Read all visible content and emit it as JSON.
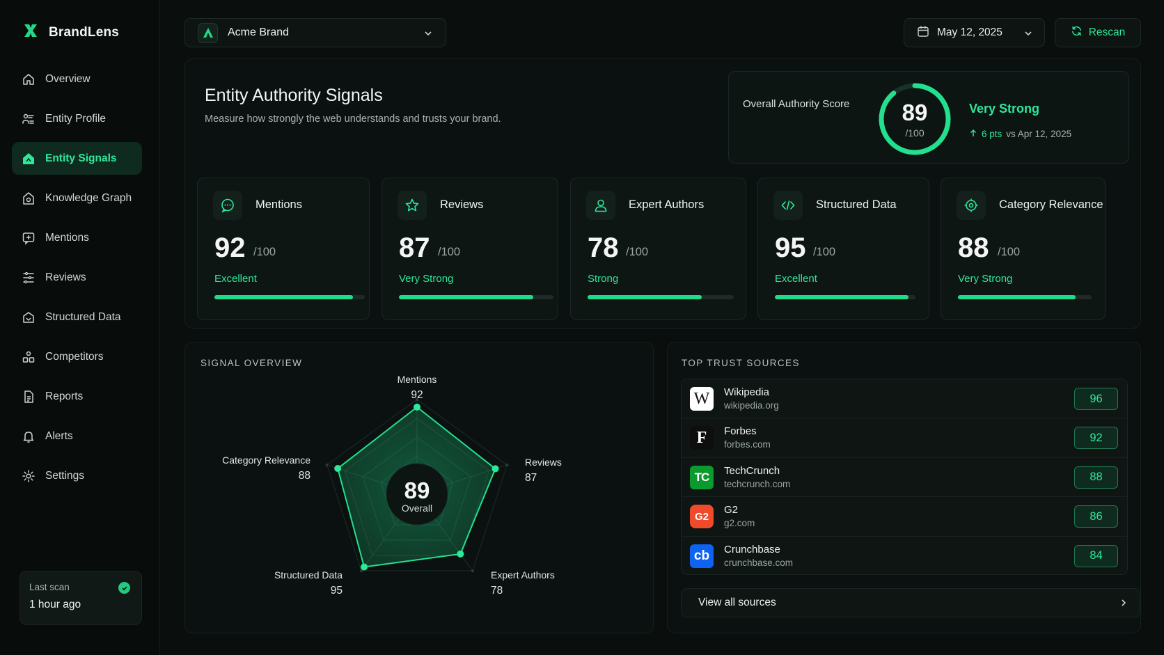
{
  "app": {
    "name": "BrandLens"
  },
  "sidebar": {
    "items": [
      {
        "label": "Overview",
        "icon": "home-icon"
      },
      {
        "label": "Entity Profile",
        "icon": "profile-icon"
      },
      {
        "label": "Entity Signals",
        "icon": "signal-icon",
        "active": true
      },
      {
        "label": "Knowledge Graph",
        "icon": "graph-icon"
      },
      {
        "label": "Mentions",
        "icon": "mention-icon"
      },
      {
        "label": "Reviews",
        "icon": "list-icon"
      },
      {
        "label": "Structured Data",
        "icon": "structured-icon"
      },
      {
        "label": "Competitors",
        "icon": "competitors-icon"
      },
      {
        "label": "Reports",
        "icon": "report-icon"
      },
      {
        "label": "Alerts",
        "icon": "bell-icon"
      },
      {
        "label": "Settings",
        "icon": "gear-icon"
      }
    ],
    "last_scan": {
      "label": "Last scan",
      "value": "1 hour ago"
    }
  },
  "topbar": {
    "brand_select": "Acme Brand",
    "date": "May 12, 2025",
    "rescan_label": "Rescan"
  },
  "hero": {
    "title": "Entity Authority Signals",
    "subtitle": "Measure how strongly the web understands and trusts your brand.",
    "overall": {
      "label": "Overall Authority Score",
      "value": "89",
      "denominator": "/100",
      "status": "Very Strong",
      "delta": "6 pts",
      "delta_ref": "vs Apr 12, 2025"
    }
  },
  "metrics": [
    {
      "title": "Mentions",
      "value": "92",
      "denominator": "/100",
      "status": "Excellent",
      "icon": "chat-icon"
    },
    {
      "title": "Reviews",
      "value": "87",
      "denominator": "/100",
      "status": "Very Strong",
      "icon": "star-icon"
    },
    {
      "title": "Expert Authors",
      "value": "78",
      "denominator": "/100",
      "status": "Strong",
      "icon": "person-icon"
    },
    {
      "title": "Structured Data",
      "value": "95",
      "denominator": "/100",
      "status": "Excellent",
      "icon": "code-icon"
    },
    {
      "title": "Category Relevance",
      "value": "88",
      "denominator": "/100",
      "status": "Very Strong",
      "icon": "target-icon"
    }
  ],
  "signal_overview": {
    "title": "SIGNAL OVERVIEW",
    "center_value": "89",
    "center_label": "Overall",
    "axes": [
      {
        "label": "Mentions",
        "value": "92"
      },
      {
        "label": "Reviews",
        "value": "87"
      },
      {
        "label": "Expert Authors",
        "value": "78"
      },
      {
        "label": "Structured Data",
        "value": "95"
      },
      {
        "label": "Category Relevance",
        "value": "88"
      }
    ]
  },
  "trust_sources": {
    "title": "TOP TRUST SOURCES",
    "items": [
      {
        "name": "Wikipedia",
        "domain": "wikipedia.org",
        "score": "96",
        "logo": "W"
      },
      {
        "name": "Forbes",
        "domain": "forbes.com",
        "score": "92",
        "logo": "F"
      },
      {
        "name": "TechCrunch",
        "domain": "techcrunch.com",
        "score": "88",
        "logo": "TC"
      },
      {
        "name": "G2",
        "domain": "g2.com",
        "score": "86",
        "logo": "G2"
      },
      {
        "name": "Crunchbase",
        "domain": "crunchbase.com",
        "score": "84",
        "logo": "cb"
      }
    ],
    "view_all": "View all sources"
  },
  "colors": {
    "accent": "#2ee89a",
    "background": "#0a0f0e"
  }
}
